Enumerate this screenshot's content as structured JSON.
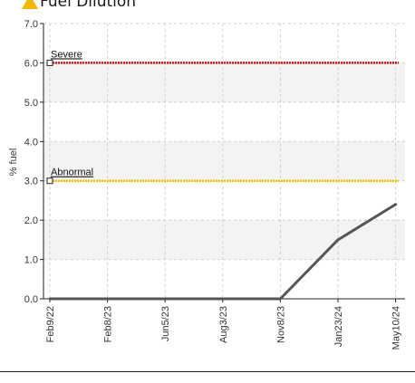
{
  "title": "Fuel Dilution",
  "warning_icon": "warning-triangle-icon",
  "colors": {
    "warning_icon": "#f5b800",
    "severe": "#e01010",
    "abnormal": "#f5c200",
    "series": "#555555",
    "band": "#f3f3f3",
    "grid": "#cfcfcf",
    "axis": "#222222"
  },
  "chart_data": {
    "type": "line",
    "title": "Fuel Dilution",
    "xlabel": "",
    "ylabel": "% fuel",
    "ylim": [
      0,
      7
    ],
    "yticks": [
      "0.0",
      "1.0",
      "2.0",
      "3.0",
      "4.0",
      "5.0",
      "6.0",
      "7.0"
    ],
    "categories": [
      "Feb9/22",
      "Feb8/23",
      "Jun5/23",
      "Aug3/23",
      "Nov8/23",
      "Jan23/24",
      "May10/24"
    ],
    "grid": true,
    "alternating_bands": true,
    "series": [
      {
        "values": [
          0.0,
          0.0,
          0.0,
          0.0,
          0.0,
          1.5,
          2.4
        ]
      }
    ],
    "thresholds": [
      {
        "label": "Severe",
        "value": 6.0
      },
      {
        "label": "Abnormal",
        "value": 3.0
      }
    ]
  }
}
